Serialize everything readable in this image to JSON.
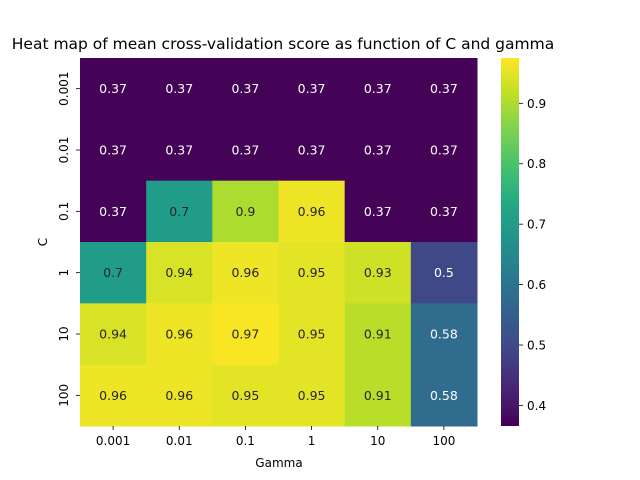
{
  "chart_data": {
    "type": "heatmap",
    "title": "Heat map of mean cross-validation score as function of C and gamma",
    "xlabel": "Gamma",
    "ylabel": "C",
    "x_categories": [
      "0.001",
      "0.01",
      "0.1",
      "1",
      "10",
      "100"
    ],
    "y_categories": [
      "0.001",
      "0.01",
      "0.1",
      "1",
      "10",
      "100"
    ],
    "values": [
      [
        0.37,
        0.37,
        0.37,
        0.37,
        0.37,
        0.37
      ],
      [
        0.37,
        0.37,
        0.37,
        0.37,
        0.37,
        0.37
      ],
      [
        0.37,
        0.7,
        0.9,
        0.96,
        0.37,
        0.37
      ],
      [
        0.7,
        0.94,
        0.96,
        0.95,
        0.93,
        0.5
      ],
      [
        0.94,
        0.96,
        0.97,
        0.95,
        0.91,
        0.58
      ],
      [
        0.96,
        0.96,
        0.95,
        0.95,
        0.91,
        0.58
      ]
    ],
    "value_labels": [
      [
        "0.37",
        "0.37",
        "0.37",
        "0.37",
        "0.37",
        "0.37"
      ],
      [
        "0.37",
        "0.37",
        "0.37",
        "0.37",
        "0.37",
        "0.37"
      ],
      [
        "0.37",
        "0.7",
        "0.9",
        "0.96",
        "0.37",
        "0.37"
      ],
      [
        "0.7",
        "0.94",
        "0.96",
        "0.95",
        "0.93",
        "0.5"
      ],
      [
        "0.94",
        "0.96",
        "0.97",
        "0.95",
        "0.91",
        "0.58"
      ],
      [
        "0.96",
        "0.96",
        "0.95",
        "0.95",
        "0.91",
        "0.58"
      ]
    ],
    "colorscale": "viridis",
    "vmin": 0.366,
    "vmax": 0.975,
    "colorbar_ticks": [
      "0.4",
      "0.5",
      "0.6",
      "0.7",
      "0.8",
      "0.9"
    ]
  }
}
